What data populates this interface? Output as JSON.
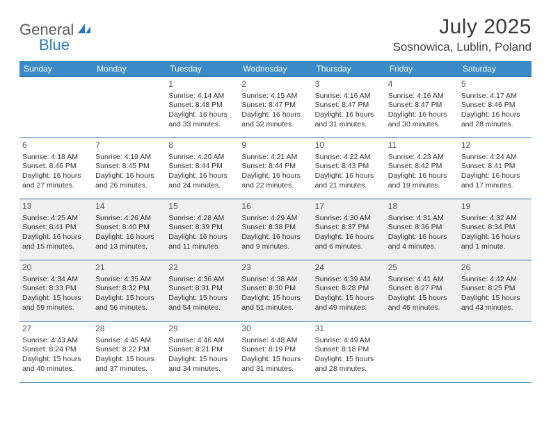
{
  "logo": {
    "general": "General",
    "blue": "Blue"
  },
  "title": "July 2025",
  "location": "Sosnowica, Lublin, Poland",
  "colors": {
    "header_bg": "#3b8bc8",
    "header_text": "#ffffff",
    "row_border": "#2a6aa0",
    "shaded_bg": "#efefef",
    "logo_gray": "#5a5a5a",
    "logo_blue": "#2a7ab9"
  },
  "day_headers": [
    "Sunday",
    "Monday",
    "Tuesday",
    "Wednesday",
    "Thursday",
    "Friday",
    "Saturday"
  ],
  "weeks": [
    {
      "shaded": false,
      "cells": [
        {
          "day": "",
          "sunrise": "",
          "sunset": "",
          "daylight1": "",
          "daylight2": ""
        },
        {
          "day": "",
          "sunrise": "",
          "sunset": "",
          "daylight1": "",
          "daylight2": ""
        },
        {
          "day": "1",
          "sunrise": "Sunrise: 4:14 AM",
          "sunset": "Sunset: 8:48 PM",
          "daylight1": "Daylight: 16 hours",
          "daylight2": "and 33 minutes."
        },
        {
          "day": "2",
          "sunrise": "Sunrise: 4:15 AM",
          "sunset": "Sunset: 8:47 PM",
          "daylight1": "Daylight: 16 hours",
          "daylight2": "and 32 minutes."
        },
        {
          "day": "3",
          "sunrise": "Sunrise: 4:16 AM",
          "sunset": "Sunset: 8:47 PM",
          "daylight1": "Daylight: 16 hours",
          "daylight2": "and 31 minutes."
        },
        {
          "day": "4",
          "sunrise": "Sunrise: 4:16 AM",
          "sunset": "Sunset: 8:47 PM",
          "daylight1": "Daylight: 16 hours",
          "daylight2": "and 30 minutes."
        },
        {
          "day": "5",
          "sunrise": "Sunrise: 4:17 AM",
          "sunset": "Sunset: 8:46 PM",
          "daylight1": "Daylight: 16 hours",
          "daylight2": "and 28 minutes."
        }
      ]
    },
    {
      "shaded": false,
      "cells": [
        {
          "day": "6",
          "sunrise": "Sunrise: 4:18 AM",
          "sunset": "Sunset: 8:46 PM",
          "daylight1": "Daylight: 16 hours",
          "daylight2": "and 27 minutes."
        },
        {
          "day": "7",
          "sunrise": "Sunrise: 4:19 AM",
          "sunset": "Sunset: 8:45 PM",
          "daylight1": "Daylight: 16 hours",
          "daylight2": "and 26 minutes."
        },
        {
          "day": "8",
          "sunrise": "Sunrise: 4:20 AM",
          "sunset": "Sunset: 8:44 PM",
          "daylight1": "Daylight: 16 hours",
          "daylight2": "and 24 minutes."
        },
        {
          "day": "9",
          "sunrise": "Sunrise: 4:21 AM",
          "sunset": "Sunset: 8:44 PM",
          "daylight1": "Daylight: 16 hours",
          "daylight2": "and 22 minutes."
        },
        {
          "day": "10",
          "sunrise": "Sunrise: 4:22 AM",
          "sunset": "Sunset: 8:43 PM",
          "daylight1": "Daylight: 16 hours",
          "daylight2": "and 21 minutes."
        },
        {
          "day": "11",
          "sunrise": "Sunrise: 4:23 AM",
          "sunset": "Sunset: 8:42 PM",
          "daylight1": "Daylight: 16 hours",
          "daylight2": "and 19 minutes."
        },
        {
          "day": "12",
          "sunrise": "Sunrise: 4:24 AM",
          "sunset": "Sunset: 8:41 PM",
          "daylight1": "Daylight: 16 hours",
          "daylight2": "and 17 minutes."
        }
      ]
    },
    {
      "shaded": true,
      "cells": [
        {
          "day": "13",
          "sunrise": "Sunrise: 4:25 AM",
          "sunset": "Sunset: 8:41 PM",
          "daylight1": "Daylight: 16 hours",
          "daylight2": "and 15 minutes."
        },
        {
          "day": "14",
          "sunrise": "Sunrise: 4:26 AM",
          "sunset": "Sunset: 8:40 PM",
          "daylight1": "Daylight: 16 hours",
          "daylight2": "and 13 minutes."
        },
        {
          "day": "15",
          "sunrise": "Sunrise: 4:28 AM",
          "sunset": "Sunset: 8:39 PM",
          "daylight1": "Daylight: 16 hours",
          "daylight2": "and 11 minutes."
        },
        {
          "day": "16",
          "sunrise": "Sunrise: 4:29 AM",
          "sunset": "Sunset: 8:38 PM",
          "daylight1": "Daylight: 16 hours",
          "daylight2": "and 9 minutes."
        },
        {
          "day": "17",
          "sunrise": "Sunrise: 4:30 AM",
          "sunset": "Sunset: 8:37 PM",
          "daylight1": "Daylight: 16 hours",
          "daylight2": "and 6 minutes."
        },
        {
          "day": "18",
          "sunrise": "Sunrise: 4:31 AM",
          "sunset": "Sunset: 8:36 PM",
          "daylight1": "Daylight: 16 hours",
          "daylight2": "and 4 minutes."
        },
        {
          "day": "19",
          "sunrise": "Sunrise: 4:32 AM",
          "sunset": "Sunset: 8:34 PM",
          "daylight1": "Daylight: 16 hours",
          "daylight2": "and 1 minute."
        }
      ]
    },
    {
      "shaded": true,
      "cells": [
        {
          "day": "20",
          "sunrise": "Sunrise: 4:34 AM",
          "sunset": "Sunset: 8:33 PM",
          "daylight1": "Daylight: 15 hours",
          "daylight2": "and 59 minutes."
        },
        {
          "day": "21",
          "sunrise": "Sunrise: 4:35 AM",
          "sunset": "Sunset: 8:32 PM",
          "daylight1": "Daylight: 15 hours",
          "daylight2": "and 56 minutes."
        },
        {
          "day": "22",
          "sunrise": "Sunrise: 4:36 AM",
          "sunset": "Sunset: 8:31 PM",
          "daylight1": "Daylight: 15 hours",
          "daylight2": "and 54 minutes."
        },
        {
          "day": "23",
          "sunrise": "Sunrise: 4:38 AM",
          "sunset": "Sunset: 8:30 PM",
          "daylight1": "Daylight: 15 hours",
          "daylight2": "and 51 minutes."
        },
        {
          "day": "24",
          "sunrise": "Sunrise: 4:39 AM",
          "sunset": "Sunset: 8:28 PM",
          "daylight1": "Daylight: 15 hours",
          "daylight2": "and 49 minutes."
        },
        {
          "day": "25",
          "sunrise": "Sunrise: 4:41 AM",
          "sunset": "Sunset: 8:27 PM",
          "daylight1": "Daylight: 15 hours",
          "daylight2": "and 46 minutes."
        },
        {
          "day": "26",
          "sunrise": "Sunrise: 4:42 AM",
          "sunset": "Sunset: 8:25 PM",
          "daylight1": "Daylight: 15 hours",
          "daylight2": "and 43 minutes."
        }
      ]
    },
    {
      "shaded": false,
      "cells": [
        {
          "day": "27",
          "sunrise": "Sunrise: 4:43 AM",
          "sunset": "Sunset: 8:24 PM",
          "daylight1": "Daylight: 15 hours",
          "daylight2": "and 40 minutes."
        },
        {
          "day": "28",
          "sunrise": "Sunrise: 4:45 AM",
          "sunset": "Sunset: 8:22 PM",
          "daylight1": "Daylight: 15 hours",
          "daylight2": "and 37 minutes."
        },
        {
          "day": "29",
          "sunrise": "Sunrise: 4:46 AM",
          "sunset": "Sunset: 8:21 PM",
          "daylight1": "Daylight: 15 hours",
          "daylight2": "and 34 minutes."
        },
        {
          "day": "30",
          "sunrise": "Sunrise: 4:48 AM",
          "sunset": "Sunset: 8:19 PM",
          "daylight1": "Daylight: 15 hours",
          "daylight2": "and 31 minutes."
        },
        {
          "day": "31",
          "sunrise": "Sunrise: 4:49 AM",
          "sunset": "Sunset: 8:18 PM",
          "daylight1": "Daylight: 15 hours",
          "daylight2": "and 28 minutes."
        },
        {
          "day": "",
          "sunrise": "",
          "sunset": "",
          "daylight1": "",
          "daylight2": ""
        },
        {
          "day": "",
          "sunrise": "",
          "sunset": "",
          "daylight1": "",
          "daylight2": ""
        }
      ]
    }
  ]
}
